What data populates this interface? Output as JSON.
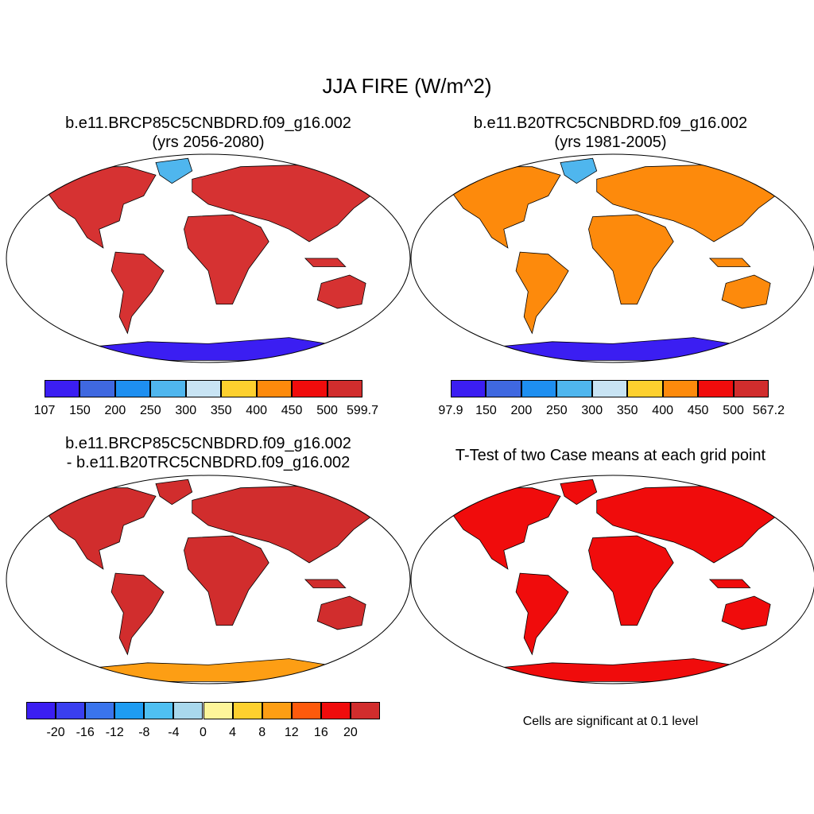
{
  "title": "JJA FIRE (W/m^2)",
  "panels": [
    {
      "id": "case",
      "title_line1": "b.e11.BRCP85C5CNBDRD.f09_g16.002",
      "title_line2": "(yrs 2056-2080)",
      "land_color": "#d63232",
      "colorbar": {
        "colors": [
          "#3b1ef2",
          "#3f68e0",
          "#1e8ff0",
          "#4fb6ee",
          "#c8e4f4",
          "#fdd02e",
          "#fd8a0c",
          "#f00c0c",
          "#d12d2d"
        ],
        "labels": [
          "107",
          "150",
          "200",
          "250",
          "300",
          "350",
          "400",
          "450",
          "500",
          "599.7"
        ]
      }
    },
    {
      "id": "control",
      "title_line1": "b.e11.B20TRC5CNBDRD.f09_g16.002",
      "title_line2": "(yrs 1981-2005)",
      "land_color": "#fd8a0c",
      "colorbar": {
        "colors": [
          "#3b1ef2",
          "#3f68e0",
          "#1e8ff0",
          "#4fb6ee",
          "#c8e4f4",
          "#fdd02e",
          "#fd8a0c",
          "#f00c0c",
          "#d12d2d"
        ],
        "labels": [
          "97.9",
          "150",
          "200",
          "250",
          "300",
          "350",
          "400",
          "450",
          "500",
          "567.2"
        ]
      }
    },
    {
      "id": "difference",
      "title_line1": "b.e11.BRCP85C5CNBDRD.f09_g16.002",
      "title_line2": "- b.e11.B20TRC5CNBDRD.f09_g16.002",
      "land_color": "#d12d2d",
      "colorbar": {
        "colors": [
          "#3b1ef2",
          "#3a3ff0",
          "#3a74ec",
          "#1e9cf2",
          "#4fc0f2",
          "#a9d8ec",
          "#fdf59a",
          "#fdd02e",
          "#fd9e14",
          "#fd5a0c",
          "#f00c0c",
          "#d12d2d"
        ],
        "labels": [
          "-20",
          "-16",
          "-12",
          "-8",
          "-4",
          "0",
          "4",
          "8",
          "12",
          "16",
          "20"
        ]
      }
    },
    {
      "id": "ttest",
      "title_line1": "T-Test of two Case means at each grid point",
      "land_color": "#f00c0c",
      "note": "Cells are significant at 0.1 level"
    }
  ]
}
